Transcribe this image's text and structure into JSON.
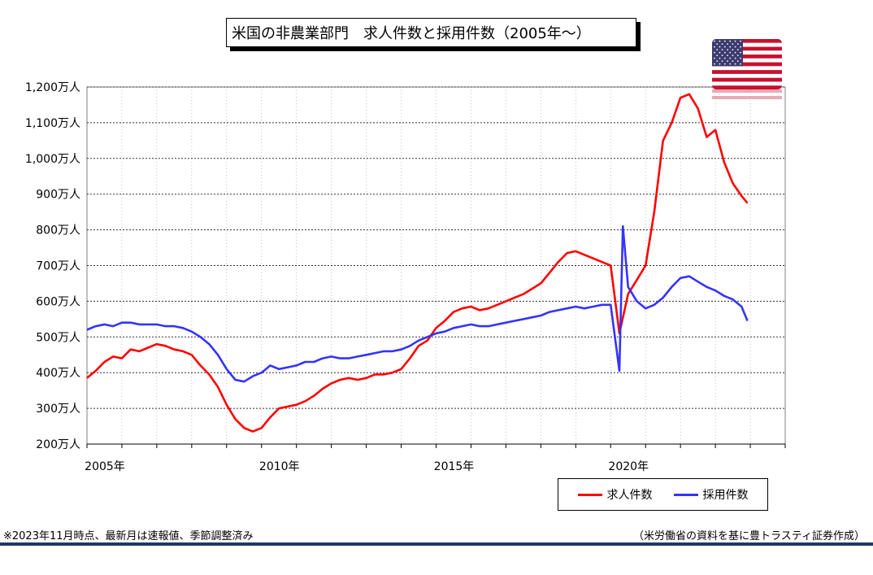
{
  "title": "米国の非農業部門　求人件数と採用件数（2005年～）",
  "notes": {
    "left": "※2023年11月時点、最新月は速報値、季節調整済み",
    "right": "（米労働省の資料を基に豊トラスティ証券作成）"
  },
  "flag": {
    "name": "us-flag-icon",
    "colors": {
      "red": "#c8102e",
      "white": "#ffffff",
      "blue": "#3c3b6e"
    }
  },
  "chart_data": {
    "type": "line",
    "title": "米国の非農業部門　求人件数と採用件数（2005年～）",
    "xlabel": "",
    "ylabel": "",
    "xlim": [
      2005.0,
      2025.0
    ],
    "ylim": [
      200,
      1200
    ],
    "y_unit": "万人",
    "x_ticks": [
      {
        "value": 2005,
        "label": "2005年"
      },
      {
        "value": 2010,
        "label": "2010年"
      },
      {
        "value": 2015,
        "label": "2015年"
      },
      {
        "value": 2020,
        "label": "2020年"
      }
    ],
    "y_ticks": [
      {
        "value": 200,
        "label": "200万人"
      },
      {
        "value": 300,
        "label": "300万人"
      },
      {
        "value": 400,
        "label": "400万人"
      },
      {
        "value": 500,
        "label": "500万人"
      },
      {
        "value": 600,
        "label": "600万人"
      },
      {
        "value": 700,
        "label": "700万人"
      },
      {
        "value": 800,
        "label": "800万人"
      },
      {
        "value": 900,
        "label": "900万人"
      },
      {
        "value": 1000,
        "label": "1,000万人"
      },
      {
        "value": 1100,
        "label": "1,100万人"
      },
      {
        "value": 1200,
        "label": "1,200万人"
      }
    ],
    "grid": true,
    "legend_position": "bottom-right",
    "series": [
      {
        "name": "求人件数",
        "color": "#ff0000",
        "points": [
          [
            2005.0,
            385
          ],
          [
            2005.25,
            405
          ],
          [
            2005.5,
            430
          ],
          [
            2005.75,
            445
          ],
          [
            2006.0,
            440
          ],
          [
            2006.25,
            465
          ],
          [
            2006.5,
            460
          ],
          [
            2006.75,
            470
          ],
          [
            2007.0,
            480
          ],
          [
            2007.25,
            475
          ],
          [
            2007.5,
            465
          ],
          [
            2007.75,
            460
          ],
          [
            2008.0,
            450
          ],
          [
            2008.25,
            420
          ],
          [
            2008.5,
            395
          ],
          [
            2008.75,
            360
          ],
          [
            2009.0,
            310
          ],
          [
            2009.25,
            270
          ],
          [
            2009.5,
            245
          ],
          [
            2009.75,
            235
          ],
          [
            2010.0,
            245
          ],
          [
            2010.25,
            275
          ],
          [
            2010.5,
            300
          ],
          [
            2010.75,
            305
          ],
          [
            2011.0,
            310
          ],
          [
            2011.25,
            320
          ],
          [
            2011.5,
            335
          ],
          [
            2011.75,
            355
          ],
          [
            2012.0,
            370
          ],
          [
            2012.25,
            380
          ],
          [
            2012.5,
            385
          ],
          [
            2012.75,
            380
          ],
          [
            2013.0,
            385
          ],
          [
            2013.25,
            395
          ],
          [
            2013.5,
            395
          ],
          [
            2013.75,
            400
          ],
          [
            2014.0,
            410
          ],
          [
            2014.25,
            440
          ],
          [
            2014.5,
            475
          ],
          [
            2014.75,
            490
          ],
          [
            2015.0,
            525
          ],
          [
            2015.25,
            545
          ],
          [
            2015.5,
            570
          ],
          [
            2015.75,
            580
          ],
          [
            2016.0,
            585
          ],
          [
            2016.25,
            575
          ],
          [
            2016.5,
            580
          ],
          [
            2016.75,
            590
          ],
          [
            2017.0,
            600
          ],
          [
            2017.25,
            610
          ],
          [
            2017.5,
            620
          ],
          [
            2017.75,
            635
          ],
          [
            2018.0,
            650
          ],
          [
            2018.25,
            680
          ],
          [
            2018.5,
            710
          ],
          [
            2018.75,
            735
          ],
          [
            2019.0,
            740
          ],
          [
            2019.25,
            730
          ],
          [
            2019.5,
            720
          ],
          [
            2019.75,
            710
          ],
          [
            2020.0,
            700
          ],
          [
            2020.25,
            510
          ],
          [
            2020.5,
            620
          ],
          [
            2020.75,
            660
          ],
          [
            2021.0,
            700
          ],
          [
            2021.25,
            850
          ],
          [
            2021.5,
            1050
          ],
          [
            2021.75,
            1100
          ],
          [
            2022.0,
            1170
          ],
          [
            2022.25,
            1180
          ],
          [
            2022.5,
            1140
          ],
          [
            2022.75,
            1060
          ],
          [
            2023.0,
            1080
          ],
          [
            2023.25,
            990
          ],
          [
            2023.5,
            930
          ],
          [
            2023.75,
            895
          ],
          [
            2023.92,
            875
          ]
        ]
      },
      {
        "name": "採用件数",
        "color": "#3333ff",
        "points": [
          [
            2005.0,
            520
          ],
          [
            2005.25,
            530
          ],
          [
            2005.5,
            535
          ],
          [
            2005.75,
            530
          ],
          [
            2006.0,
            540
          ],
          [
            2006.25,
            540
          ],
          [
            2006.5,
            535
          ],
          [
            2006.75,
            535
          ],
          [
            2007.0,
            535
          ],
          [
            2007.25,
            530
          ],
          [
            2007.5,
            530
          ],
          [
            2007.75,
            525
          ],
          [
            2008.0,
            515
          ],
          [
            2008.25,
            500
          ],
          [
            2008.5,
            480
          ],
          [
            2008.75,
            450
          ],
          [
            2009.0,
            410
          ],
          [
            2009.25,
            380
          ],
          [
            2009.5,
            375
          ],
          [
            2009.75,
            390
          ],
          [
            2010.0,
            400
          ],
          [
            2010.25,
            420
          ],
          [
            2010.5,
            410
          ],
          [
            2010.75,
            415
          ],
          [
            2011.0,
            420
          ],
          [
            2011.25,
            430
          ],
          [
            2011.5,
            430
          ],
          [
            2011.75,
            440
          ],
          [
            2012.0,
            445
          ],
          [
            2012.25,
            440
          ],
          [
            2012.5,
            440
          ],
          [
            2012.75,
            445
          ],
          [
            2013.0,
            450
          ],
          [
            2013.25,
            455
          ],
          [
            2013.5,
            460
          ],
          [
            2013.75,
            460
          ],
          [
            2014.0,
            465
          ],
          [
            2014.25,
            475
          ],
          [
            2014.5,
            490
          ],
          [
            2014.75,
            500
          ],
          [
            2015.0,
            510
          ],
          [
            2015.25,
            515
          ],
          [
            2015.5,
            525
          ],
          [
            2015.75,
            530
          ],
          [
            2016.0,
            535
          ],
          [
            2016.25,
            530
          ],
          [
            2016.5,
            530
          ],
          [
            2016.75,
            535
          ],
          [
            2017.0,
            540
          ],
          [
            2017.25,
            545
          ],
          [
            2017.5,
            550
          ],
          [
            2017.75,
            555
          ],
          [
            2018.0,
            560
          ],
          [
            2018.25,
            570
          ],
          [
            2018.5,
            575
          ],
          [
            2018.75,
            580
          ],
          [
            2019.0,
            585
          ],
          [
            2019.25,
            580
          ],
          [
            2019.5,
            585
          ],
          [
            2019.75,
            590
          ],
          [
            2020.0,
            590
          ],
          [
            2020.25,
            405
          ],
          [
            2020.35,
            810
          ],
          [
            2020.5,
            640
          ],
          [
            2020.75,
            600
          ],
          [
            2021.0,
            580
          ],
          [
            2021.25,
            590
          ],
          [
            2021.5,
            610
          ],
          [
            2021.75,
            640
          ],
          [
            2022.0,
            665
          ],
          [
            2022.25,
            670
          ],
          [
            2022.5,
            655
          ],
          [
            2022.75,
            640
          ],
          [
            2023.0,
            630
          ],
          [
            2023.25,
            615
          ],
          [
            2023.5,
            605
          ],
          [
            2023.75,
            585
          ],
          [
            2023.92,
            545
          ]
        ]
      }
    ]
  }
}
